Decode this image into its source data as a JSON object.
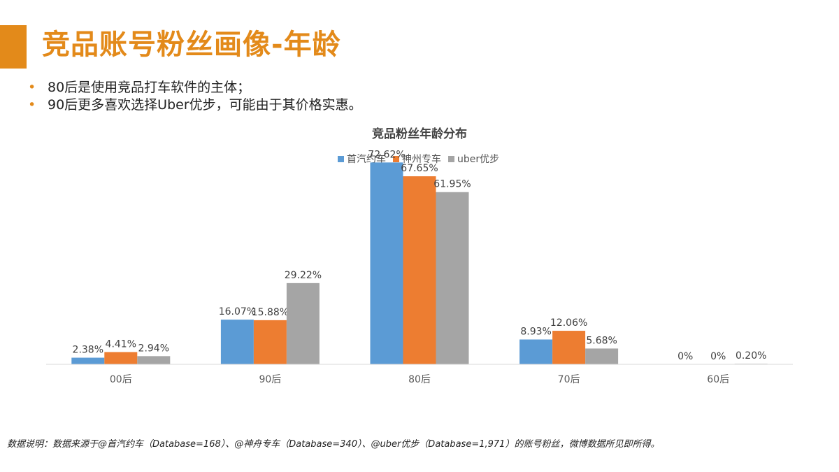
{
  "page": {
    "title": "竞品账号粉丝画像-年龄",
    "bullets": [
      "80后是使用竞品打车软件的主体；",
      "90后更多喜欢选择Uber优步，可能由于其价格实惠。"
    ],
    "footnote": "数据说明：数据来源于@首汽约车（Database=168）、@神舟专车（Database=340）、@uber优步（Database=1,971）的账号粉丝，微博数据所见即所得。",
    "colors": {
      "accent": "#e38a1a"
    }
  },
  "chart_data": {
    "type": "bar",
    "title": "竞品粉丝年龄分布",
    "xlabel": "",
    "ylabel": "",
    "ylim": [
      0,
      80
    ],
    "grid": false,
    "legend_position": "top-center",
    "categories": [
      "00后",
      "90后",
      "80后",
      "70后",
      "60后"
    ],
    "series": [
      {
        "name": "首汽约车",
        "color": "#5b9bd5",
        "values": [
          2.38,
          16.07,
          72.62,
          8.93,
          0
        ],
        "labels": [
          "2.38%",
          "16.07%",
          "72.62%",
          "8.93%",
          "0%"
        ]
      },
      {
        "name": "神州专车",
        "color": "#ed7d31",
        "values": [
          4.41,
          15.88,
          67.65,
          12.06,
          0
        ],
        "labels": [
          "4.41%",
          "15.88%",
          "67.65%",
          "12.06%",
          "0%"
        ]
      },
      {
        "name": "uber优步",
        "color": "#a5a5a5",
        "values": [
          2.94,
          29.22,
          61.95,
          5.68,
          0.2
        ],
        "labels": [
          "2.94%",
          "29.22%",
          "61.95%",
          "5.68%",
          "0.20%"
        ]
      }
    ]
  }
}
